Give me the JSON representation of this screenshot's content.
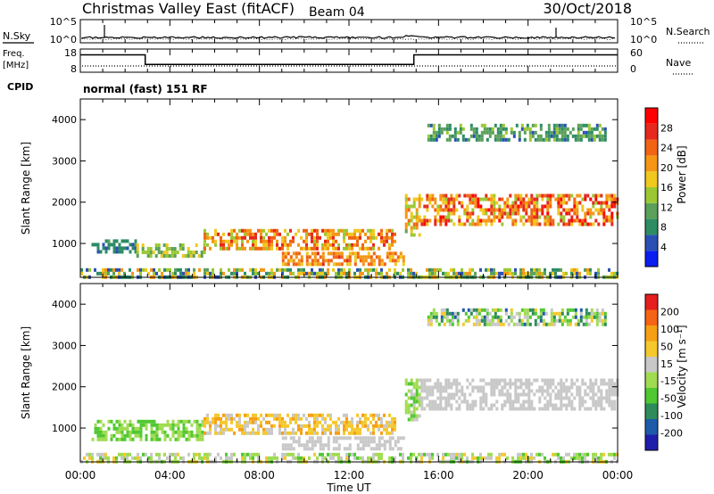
{
  "header": {
    "title": "Christmas Valley East (fitACF)",
    "beam": "Beam 04",
    "date": "30/Oct/2018"
  },
  "noise_panel": {
    "left_label": "N.Sky",
    "right_label": "N.Search",
    "left_ticks": [
      "10^5",
      "10^0"
    ],
    "right_ticks": [
      "10^5",
      "10^0"
    ]
  },
  "freq_panel": {
    "left_label_1": "Freq.",
    "left_label_2": "[MHz]",
    "right_label": "Nave",
    "left_ticks": [
      "18",
      "8"
    ],
    "right_ticks": [
      "60",
      "0"
    ],
    "cpid_label": "CPID",
    "cpid_text": "normal (fast) 151 RF"
  },
  "time_axis": {
    "xlabel": "Time UT",
    "ticks": [
      "00:00",
      "04:00",
      "08:00",
      "12:00",
      "16:00",
      "20:00",
      "00:00"
    ]
  },
  "colors": {
    "power": [
      "#0a1ef0",
      "#2a50b4",
      "#2d8c64",
      "#5aa05a",
      "#9bc832",
      "#f0c81e",
      "#f59614",
      "#f06414",
      "#e6281e",
      "#ff0000"
    ],
    "velocity": [
      "#e61e1e",
      "#f56414",
      "#f5a014",
      "#f5c82d",
      "#c8c8c8",
      "#a0dc50",
      "#50c832",
      "#2d8c5a",
      "#1e5aaa",
      "#1e1eaa"
    ]
  },
  "chart_data": [
    {
      "type": "heatmap",
      "name": "power",
      "ylabel": "Slant Range [km]",
      "ylim": [
        180,
        4500
      ],
      "yticks": [
        1000,
        2000,
        3000,
        4000
      ],
      "xlim": [
        0,
        24
      ],
      "colorbar": {
        "label": "Power [dB]",
        "ticks": [
          4,
          8,
          12,
          16,
          20,
          24,
          28
        ],
        "range": [
          0,
          32
        ]
      },
      "echo_regions": [
        {
          "t0": 0.5,
          "t1": 2.5,
          "r0": 800,
          "r1": 1100,
          "v0": 5,
          "v1": 10
        },
        {
          "t0": 2.5,
          "t1": 5.5,
          "r0": 700,
          "r1": 1000,
          "v0": 10,
          "v1": 18
        },
        {
          "t0": 5.5,
          "t1": 14.0,
          "r0": 900,
          "r1": 1350,
          "v0": 14,
          "v1": 28
        },
        {
          "t0": 9.0,
          "t1": 14.5,
          "r0": 500,
          "r1": 800,
          "v0": 18,
          "v1": 26
        },
        {
          "t0": 14.5,
          "t1": 15.2,
          "r0": 1200,
          "r1": 2200,
          "v0": 12,
          "v1": 24
        },
        {
          "t0": 15.2,
          "t1": 24.0,
          "r0": 1500,
          "r1": 2200,
          "v0": 14,
          "v1": 30
        },
        {
          "t0": 15.5,
          "t1": 23.5,
          "r0": 3500,
          "r1": 3900,
          "v0": 5,
          "v1": 14
        },
        {
          "t0": 0.0,
          "t1": 24.0,
          "r0": 180,
          "r1": 400,
          "v0": 4,
          "v1": 22
        }
      ]
    },
    {
      "type": "heatmap",
      "name": "velocity",
      "ylabel": "Slant Range [km]",
      "ylim": [
        180,
        4500
      ],
      "yticks": [
        1000,
        2000,
        3000,
        4000
      ],
      "xlim": [
        0,
        24
      ],
      "colorbar": {
        "label": "Velocity [m s⁻¹]",
        "ticks": [
          200,
          100,
          50,
          15,
          -15,
          -50,
          -100,
          -200
        ]
      },
      "echo_regions": [
        {
          "t0": 0.5,
          "t1": 5.5,
          "r0": 700,
          "r1": 1200,
          "v0": 5,
          "v1": 6
        },
        {
          "t0": 5.5,
          "t1": 14.0,
          "r0": 900,
          "r1": 1350,
          "v0": 2,
          "v1": 4
        },
        {
          "t0": 9.0,
          "t1": 14.5,
          "r0": 500,
          "r1": 800,
          "v0": 4,
          "v1": 4
        },
        {
          "t0": 14.5,
          "t1": 15.2,
          "r0": 1200,
          "r1": 2200,
          "v0": 4,
          "v1": 6
        },
        {
          "t0": 15.2,
          "t1": 24.0,
          "r0": 1500,
          "r1": 2200,
          "v0": 4,
          "v1": 4
        },
        {
          "t0": 15.5,
          "t1": 23.5,
          "r0": 3500,
          "r1": 3900,
          "v0": 3,
          "v1": 8
        },
        {
          "t0": 0.0,
          "t1": 24.0,
          "r0": 180,
          "r1": 400,
          "v0": 3,
          "v1": 6
        }
      ]
    },
    {
      "type": "line",
      "name": "frequency",
      "x": [
        0,
        2.9,
        2.9,
        14.9,
        14.9,
        24
      ],
      "y": [
        15,
        15,
        10,
        10,
        15,
        15
      ],
      "ylim": [
        6,
        18
      ]
    }
  ]
}
